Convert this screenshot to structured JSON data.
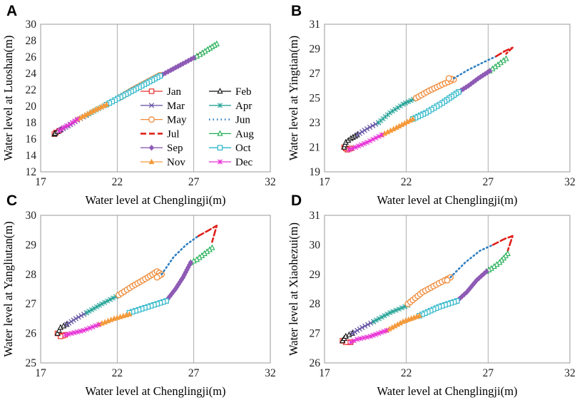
{
  "chart_data": [
    {
      "panel": "A",
      "type": "line",
      "xlabel": "Water level at Chenglingji(m)",
      "ylabel": "Water level at Luoshan(m)",
      "xlim": [
        17,
        32
      ],
      "xticks": [
        17,
        22,
        27,
        32
      ],
      "ylim": [
        12,
        30
      ],
      "yticks": [
        12,
        14,
        16,
        18,
        20,
        22,
        24,
        26,
        28,
        30
      ],
      "legend": {
        "position": "center",
        "columns": 2
      },
      "series": [
        {
          "name": "Jan",
          "x": [
            18.2,
            18.0,
            17.9
          ],
          "y": [
            17.0,
            16.8,
            16.6
          ]
        },
        {
          "name": "Feb",
          "x": [
            17.9,
            17.95,
            18.1,
            18.3
          ],
          "y": [
            16.6,
            16.7,
            16.9,
            17.1
          ]
        },
        {
          "name": "Mar",
          "x": [
            18.3,
            18.8,
            19.4,
            20.0
          ],
          "y": [
            17.1,
            17.6,
            18.3,
            18.9
          ]
        },
        {
          "name": "Apr",
          "x": [
            20.0,
            20.8,
            21.5,
            22.2
          ],
          "y": [
            18.9,
            19.7,
            20.4,
            21.1
          ]
        },
        {
          "name": "May",
          "x": [
            22.2,
            23.0,
            24.0,
            24.8
          ],
          "y": [
            21.1,
            22.0,
            23.0,
            23.8
          ]
        },
        {
          "name": "Jun",
          "x": [
            24.8,
            25.7,
            26.5,
            27.3
          ],
          "y": [
            23.8,
            24.7,
            25.5,
            26.3
          ]
        },
        {
          "name": "Jul",
          "x": [
            27.3,
            27.9,
            28.5
          ],
          "y": [
            26.3,
            26.9,
            27.6
          ]
        },
        {
          "name": "Aug",
          "x": [
            28.5,
            27.9,
            27.4,
            27.0
          ],
          "y": [
            27.6,
            26.9,
            26.3,
            25.9
          ]
        },
        {
          "name": "Sep",
          "x": [
            27.0,
            26.3,
            25.5,
            24.8
          ],
          "y": [
            25.9,
            25.2,
            24.4,
            23.7
          ]
        },
        {
          "name": "Oct",
          "x": [
            24.8,
            23.6,
            22.4,
            21.3
          ],
          "y": [
            23.7,
            22.5,
            21.3,
            20.2
          ]
        },
        {
          "name": "Nov",
          "x": [
            21.3,
            20.6,
            19.9,
            19.4
          ],
          "y": [
            20.2,
            19.6,
            18.9,
            18.4
          ]
        },
        {
          "name": "Dec",
          "x": [
            19.4,
            18.9,
            18.5,
            18.2
          ],
          "y": [
            18.4,
            17.8,
            17.4,
            17.0
          ]
        }
      ]
    },
    {
      "panel": "B",
      "type": "line",
      "xlabel": "Water level at Chenglingji(m)",
      "ylabel": "Water level at Yingtian(m)",
      "xlim": [
        17,
        32
      ],
      "xticks": [
        17,
        22,
        27,
        32
      ],
      "ylim": [
        19,
        31
      ],
      "yticks": [
        19,
        21,
        23,
        25,
        27,
        29,
        31
      ],
      "series": [
        {
          "name": "Jan",
          "x": [
            18.6,
            18.4,
            18.3,
            18.2
          ],
          "y": [
            20.9,
            20.8,
            20.9,
            21.0
          ]
        },
        {
          "name": "Feb",
          "x": [
            18.2,
            18.3,
            18.6,
            19.0
          ],
          "y": [
            21.0,
            21.4,
            21.7,
            22.0
          ]
        },
        {
          "name": "Mar",
          "x": [
            19.0,
            19.6,
            20.3
          ],
          "y": [
            22.0,
            22.5,
            23.0
          ]
        },
        {
          "name": "Apr",
          "x": [
            20.3,
            21.0,
            21.8,
            22.6
          ],
          "y": [
            23.0,
            23.8,
            24.5,
            25.0
          ]
        },
        {
          "name": "May",
          "x": [
            22.6,
            23.4,
            24.2,
            24.9,
            24.6
          ],
          "y": [
            25.0,
            25.6,
            26.1,
            26.5,
            26.6
          ]
        },
        {
          "name": "Jun",
          "x": [
            24.9,
            25.8,
            26.7,
            27.5
          ],
          "y": [
            26.6,
            27.3,
            27.9,
            28.4
          ]
        },
        {
          "name": "Jul",
          "x": [
            27.5,
            28.0,
            28.5,
            28.1
          ],
          "y": [
            28.4,
            28.8,
            29.1,
            28.6
          ]
        },
        {
          "name": "Aug",
          "x": [
            28.1,
            27.6,
            27.1
          ],
          "y": [
            28.2,
            27.7,
            27.2
          ]
        },
        {
          "name": "Sep",
          "x": [
            27.1,
            26.4,
            25.8,
            25.2
          ],
          "y": [
            27.2,
            26.6,
            26.0,
            25.5
          ]
        },
        {
          "name": "Oct",
          "x": [
            25.2,
            24.2,
            23.2,
            22.4
          ],
          "y": [
            25.5,
            24.6,
            23.8,
            23.3
          ]
        },
        {
          "name": "Nov",
          "x": [
            22.4,
            21.4,
            20.5
          ],
          "y": [
            23.3,
            22.6,
            22.0
          ]
        },
        {
          "name": "Dec",
          "x": [
            20.5,
            19.6,
            18.9,
            18.5
          ],
          "y": [
            22.0,
            21.4,
            21.0,
            20.8
          ]
        }
      ]
    },
    {
      "panel": "C",
      "type": "line",
      "xlabel": "Water level at Chenglingji(m)",
      "ylabel": "Water level at Yangliutan(m)",
      "xlim": [
        17,
        32
      ],
      "xticks": [
        17,
        22,
        27,
        32
      ],
      "ylim": [
        25,
        30
      ],
      "yticks": [
        25,
        26,
        27,
        28,
        29,
        30
      ],
      "series": [
        {
          "name": "Jan",
          "x": [
            18.6,
            18.3,
            18.1
          ],
          "y": [
            25.95,
            25.9,
            26.0
          ]
        },
        {
          "name": "Feb",
          "x": [
            18.1,
            18.3,
            18.7
          ],
          "y": [
            26.0,
            26.2,
            26.3
          ]
        },
        {
          "name": "Mar",
          "x": [
            18.7,
            19.3,
            20.0
          ],
          "y": [
            26.3,
            26.5,
            26.7
          ]
        },
        {
          "name": "Apr",
          "x": [
            20.0,
            21.0,
            22.1
          ],
          "y": [
            26.7,
            27.0,
            27.3
          ]
        },
        {
          "name": "May",
          "x": [
            22.1,
            23.0,
            24.0,
            24.6,
            24.9,
            24.6
          ],
          "y": [
            27.3,
            27.6,
            27.9,
            28.1,
            28.0,
            27.9
          ]
        },
        {
          "name": "Jun",
          "x": [
            24.9,
            25.7,
            26.5,
            27.3
          ],
          "y": [
            28.0,
            28.6,
            29.0,
            29.3
          ]
        },
        {
          "name": "Jul",
          "x": [
            27.3,
            28.0,
            28.5,
            28.2
          ],
          "y": [
            29.3,
            29.5,
            29.65,
            29.1
          ]
        },
        {
          "name": "Aug",
          "x": [
            28.2,
            27.7,
            27.2,
            26.8
          ],
          "y": [
            28.9,
            28.7,
            28.5,
            28.4
          ]
        },
        {
          "name": "Sep",
          "x": [
            26.8,
            26.3,
            25.8,
            25.2
          ],
          "y": [
            28.4,
            27.9,
            27.5,
            27.1
          ]
        },
        {
          "name": "Oct",
          "x": [
            25.2,
            24.0,
            22.8
          ],
          "y": [
            27.1,
            26.9,
            26.7
          ]
        },
        {
          "name": "Nov",
          "x": [
            22.8,
            21.8,
            20.8
          ],
          "y": [
            26.65,
            26.5,
            26.3
          ]
        },
        {
          "name": "Dec",
          "x": [
            20.8,
            19.8,
            19.0,
            18.6
          ],
          "y": [
            26.3,
            26.1,
            26.0,
            25.95
          ]
        }
      ]
    },
    {
      "panel": "D",
      "type": "line",
      "xlabel": "Water level at Chenglingji(m)",
      "ylabel": "Water level at Xiaohezui(m)",
      "xlim": [
        17,
        32
      ],
      "xticks": [
        17,
        22,
        27,
        32
      ],
      "ylim": [
        26,
        31
      ],
      "yticks": [
        26,
        27,
        28,
        29,
        30,
        31
      ],
      "series": [
        {
          "name": "Jan",
          "x": [
            18.6,
            18.3,
            18.1
          ],
          "y": [
            26.7,
            26.7,
            26.75
          ]
        },
        {
          "name": "Feb",
          "x": [
            18.1,
            18.3,
            18.7
          ],
          "y": [
            26.75,
            26.9,
            27.0
          ]
        },
        {
          "name": "Mar",
          "x": [
            18.7,
            19.3,
            20.0
          ],
          "y": [
            27.0,
            27.2,
            27.4
          ]
        },
        {
          "name": "Apr",
          "x": [
            20.0,
            21.0,
            22.1
          ],
          "y": [
            27.4,
            27.7,
            27.95
          ]
        },
        {
          "name": "May",
          "x": [
            22.1,
            23.0,
            24.0,
            24.7,
            24.5
          ],
          "y": [
            28.0,
            28.4,
            28.7,
            28.9,
            28.8
          ]
        },
        {
          "name": "Jun",
          "x": [
            24.7,
            25.6,
            26.5,
            27.3
          ],
          "y": [
            28.9,
            29.4,
            29.8,
            30.0
          ]
        },
        {
          "name": "Jul",
          "x": [
            27.3,
            28.0,
            28.5,
            28.2
          ],
          "y": [
            30.0,
            30.2,
            30.3,
            29.8
          ]
        },
        {
          "name": "Aug",
          "x": [
            28.2,
            27.7,
            27.2,
            26.9
          ],
          "y": [
            29.7,
            29.4,
            29.2,
            29.1
          ]
        },
        {
          "name": "Sep",
          "x": [
            26.9,
            26.3,
            25.7,
            25.1
          ],
          "y": [
            29.1,
            28.8,
            28.4,
            28.1
          ]
        },
        {
          "name": "Oct",
          "x": [
            25.1,
            24.0,
            22.8
          ],
          "y": [
            28.1,
            27.9,
            27.6
          ]
        },
        {
          "name": "Nov",
          "x": [
            22.8,
            21.8,
            20.8
          ],
          "y": [
            27.6,
            27.4,
            27.1
          ]
        },
        {
          "name": "Dec",
          "x": [
            20.8,
            19.8,
            19.0,
            18.6
          ],
          "y": [
            27.1,
            26.9,
            26.8,
            26.7
          ]
        }
      ]
    }
  ],
  "series_styles": [
    {
      "name": "Jan",
      "color": "#e8312a",
      "marker": "square-open",
      "dash": false
    },
    {
      "name": "Feb",
      "color": "#111111",
      "marker": "triangle-open",
      "dash": false
    },
    {
      "name": "Mar",
      "color": "#6b5aa8",
      "marker": "x",
      "dash": false
    },
    {
      "name": "Apr",
      "color": "#2aa59a",
      "marker": "star",
      "dash": false
    },
    {
      "name": "May",
      "color": "#ef8a3a",
      "marker": "circle-open",
      "dash": false
    },
    {
      "name": "Jun",
      "color": "#2f7fc1",
      "marker": "none",
      "dash": "dotted"
    },
    {
      "name": "Jul",
      "color": "#e0201a",
      "marker": "none",
      "dash": "dashed"
    },
    {
      "name": "Aug",
      "color": "#1fae52",
      "marker": "triangle-open",
      "dash": false
    },
    {
      "name": "Sep",
      "color": "#8e5bb5",
      "marker": "diamond",
      "dash": false
    },
    {
      "name": "Oct",
      "color": "#2cb6c9",
      "marker": "square-open",
      "dash": false
    },
    {
      "name": "Nov",
      "color": "#f49a3c",
      "marker": "triangle",
      "dash": false
    },
    {
      "name": "Dec",
      "color": "#e832d6",
      "marker": "star",
      "dash": false
    }
  ]
}
